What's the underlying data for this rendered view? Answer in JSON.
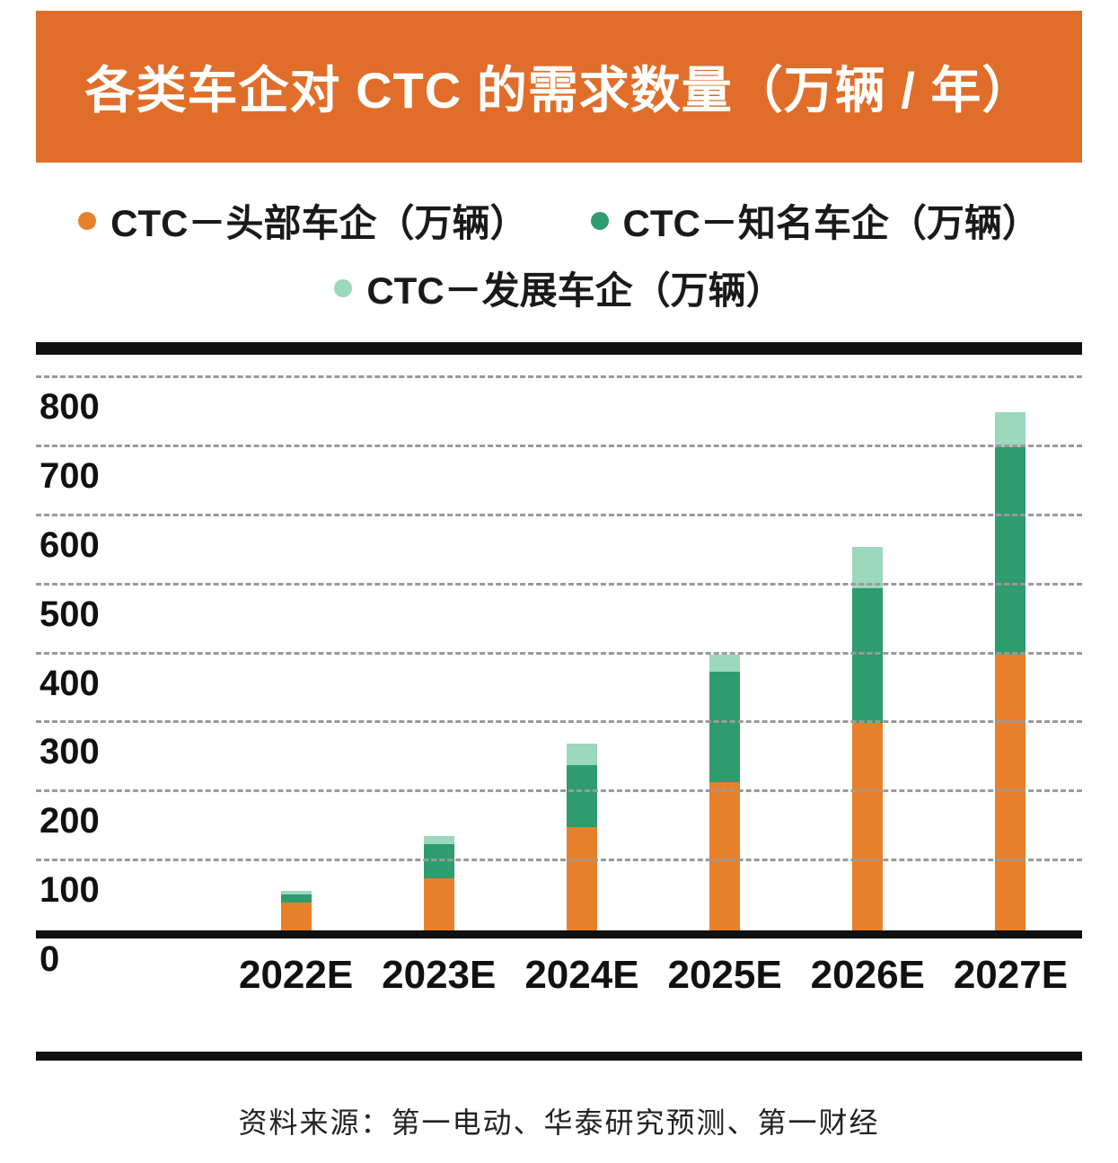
{
  "banner": {
    "title": "各类车企对 CTC 的需求数量（万辆 / 年）",
    "bg": "#E06E2A",
    "fg": "#FFFFFF"
  },
  "source": {
    "text": "资料来源：第一电动、华泰研究预测、第一财经"
  },
  "chart_data": {
    "type": "bar",
    "stacked": true,
    "title": "各类车企对 CTC 的需求数量（万辆 / 年）",
    "unit": "万辆/年",
    "categories": [
      "2022E",
      "2023E",
      "2024E",
      "2025E",
      "2026E",
      "2027E"
    ],
    "series": [
      {
        "name": "CTC－头部车企（万辆）",
        "color": "#E8802B",
        "values": [
          40,
          75,
          150,
          215,
          300,
          400
        ]
      },
      {
        "name": "CTC－知名车企（万辆）",
        "color": "#2E9C6E",
        "values": [
          12,
          50,
          90,
          160,
          195,
          300
        ]
      },
      {
        "name": "CTC－发展车企（万辆）",
        "color": "#9BD8BC",
        "values": [
          5,
          12,
          30,
          25,
          60,
          50
        ]
      }
    ],
    "totals": [
      57,
      137,
      270,
      400,
      555,
      750
    ],
    "yticks": [
      0,
      100,
      200,
      300,
      400,
      500,
      600,
      700,
      800
    ],
    "ylim": [
      0,
      800
    ],
    "grid": "dashed-horizontal",
    "legend_position": "top"
  }
}
